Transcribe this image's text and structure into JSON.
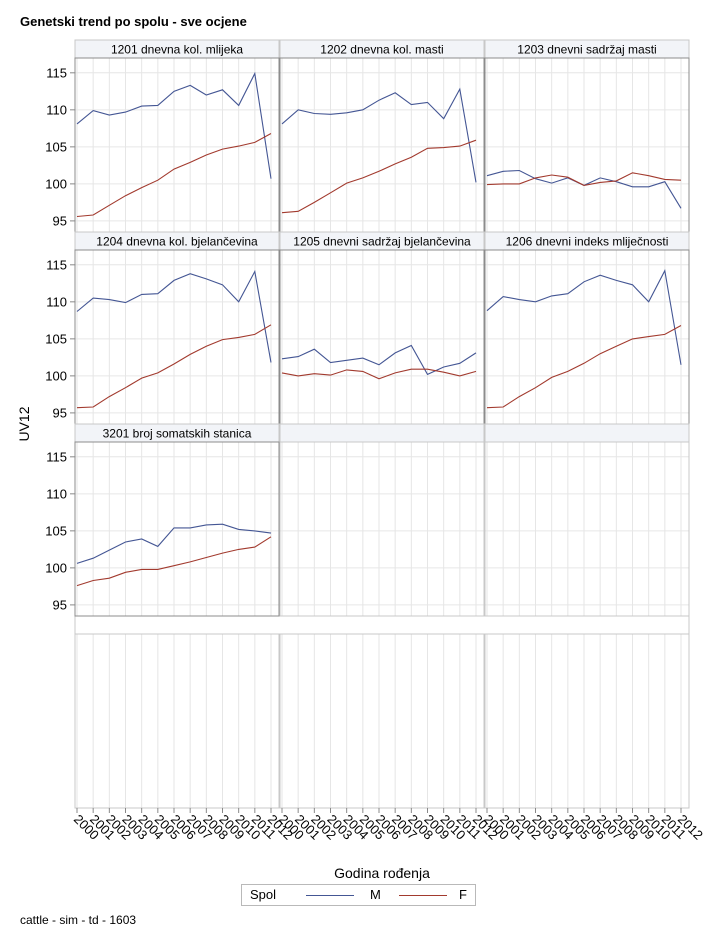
{
  "title": "Genetski trend po spolu - sve ocjene",
  "footnote": "cattle - sim - td - 1603",
  "legend": {
    "title": "Spol",
    "items": [
      {
        "label": "M",
        "color": "#445694"
      },
      {
        "label": "F",
        "color": "#a23a2e"
      }
    ]
  },
  "chart_data": {
    "type": "line",
    "xlabel": "Godina rođenja",
    "ylabel": "UV12",
    "x": [
      "2000",
      "2001",
      "2002",
      "2003",
      "2004",
      "2005",
      "2006",
      "2007",
      "2008",
      "2009",
      "2010",
      "2011",
      "2012"
    ],
    "ylim": [
      93.5,
      117
    ],
    "yticks": [
      95,
      100,
      105,
      110,
      115
    ],
    "grid": true,
    "legend_position": "bottom",
    "panels": [
      {
        "title": "1201 dnevna kol. mlijeka",
        "series": [
          {
            "name": "M",
            "values": [
              108.1,
              109.9,
              109.3,
              109.7,
              110.5,
              110.6,
              112.5,
              113.3,
              112.0,
              112.7,
              110.6,
              114.9,
              100.7
            ]
          },
          {
            "name": "F",
            "values": [
              95.6,
              95.8,
              97.1,
              98.4,
              99.5,
              100.5,
              102.0,
              102.9,
              103.9,
              104.7,
              105.1,
              105.6,
              106.8
            ]
          }
        ]
      },
      {
        "title": "1202 dnevna kol. masti",
        "series": [
          {
            "name": "M",
            "values": [
              108.1,
              110.0,
              109.5,
              109.4,
              109.6,
              110.0,
              111.3,
              112.3,
              110.7,
              111.0,
              108.8,
              112.8,
              100.2
            ]
          },
          {
            "name": "F",
            "values": [
              96.1,
              96.3,
              97.5,
              98.8,
              100.1,
              100.8,
              101.7,
              102.7,
              103.6,
              104.8,
              104.9,
              105.1,
              105.9
            ]
          }
        ]
      },
      {
        "title": "1203 dnevni sadržaj masti",
        "series": [
          {
            "name": "M",
            "values": [
              101.1,
              101.7,
              101.8,
              100.7,
              100.1,
              100.8,
              99.8,
              100.8,
              100.3,
              99.6,
              99.6,
              100.3,
              96.7
            ]
          },
          {
            "name": "F",
            "values": [
              99.9,
              100.0,
              100.0,
              100.8,
              101.2,
              100.9,
              99.8,
              100.2,
              100.4,
              101.5,
              101.1,
              100.6,
              100.5
            ]
          }
        ]
      },
      {
        "title": "1204 dnevna kol. bjelančevina",
        "series": [
          {
            "name": "M",
            "values": [
              108.7,
              110.5,
              110.3,
              109.9,
              111.0,
              111.1,
              112.9,
              113.8,
              113.1,
              112.3,
              110.0,
              114.1,
              101.8
            ]
          },
          {
            "name": "F",
            "values": [
              95.7,
              95.8,
              97.2,
              98.4,
              99.7,
              100.4,
              101.6,
              102.9,
              104.0,
              104.9,
              105.2,
              105.6,
              106.9
            ]
          }
        ]
      },
      {
        "title": "1205 dnevni sadržaj bjelančevina",
        "series": [
          {
            "name": "M",
            "values": [
              102.3,
              102.6,
              103.6,
              101.8,
              102.1,
              102.4,
              101.5,
              103.1,
              104.1,
              100.2,
              101.2,
              101.7,
              103.1
            ]
          },
          {
            "name": "F",
            "values": [
              100.4,
              100.0,
              100.3,
              100.1,
              100.8,
              100.6,
              99.6,
              100.4,
              100.9,
              100.9,
              100.5,
              100.0,
              100.6
            ]
          }
        ]
      },
      {
        "title": "1206 dnevni indeks mliječnosti",
        "series": [
          {
            "name": "M",
            "values": [
              108.8,
              110.7,
              110.3,
              110.0,
              110.8,
              111.1,
              112.7,
              113.6,
              112.9,
              112.3,
              110.0,
              114.2,
              101.5
            ]
          },
          {
            "name": "F",
            "values": [
              95.7,
              95.8,
              97.2,
              98.4,
              99.8,
              100.6,
              101.7,
              103.0,
              104.0,
              105.0,
              105.3,
              105.6,
              106.8
            ]
          }
        ]
      },
      {
        "title": "3201 broj somatskih stanica",
        "series": [
          {
            "name": "M",
            "values": [
              100.6,
              101.3,
              102.4,
              103.5,
              103.9,
              102.9,
              105.4,
              105.4,
              105.8,
              105.9,
              105.2,
              105.0,
              104.7
            ]
          },
          {
            "name": "F",
            "values": [
              97.6,
              98.3,
              98.6,
              99.4,
              99.8,
              99.8,
              100.3,
              100.8,
              101.4,
              102.0,
              102.5,
              102.8,
              104.2
            ]
          }
        ]
      }
    ]
  }
}
